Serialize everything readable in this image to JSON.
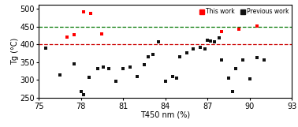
{
  "chart_data": {
    "type": "scatter",
    "x_label": "T450 nm (%)",
    "y_label": "Tg (°C)",
    "xlim": [
      75,
      93
    ],
    "ylim": [
      250,
      510
    ],
    "xticks": [
      75,
      78,
      81,
      84,
      87,
      90,
      93
    ],
    "yticks": [
      250,
      300,
      350,
      400,
      450,
      500
    ],
    "legend": "upper right",
    "marker": "square",
    "hlines": [
      {
        "y": 448,
        "color": "#007700",
        "line_style": "dashed"
      },
      {
        "y": 400,
        "color": "#cc0000",
        "line_style": "dashed"
      }
    ],
    "series": [
      {
        "name": "This work",
        "color": "#ff0000",
        "x": [
          77.0,
          77.5,
          78.2,
          78.7,
          79.5,
          88.0,
          89.2,
          90.5
        ],
        "values": [
          420,
          426,
          490,
          487,
          430,
          435,
          442,
          452
        ]
      },
      {
        "name": "Previous work",
        "color": "#111111",
        "x": [
          75.5,
          76.5,
          77.5,
          78.0,
          78.2,
          78.6,
          79.2,
          79.6,
          80.0,
          80.5,
          81.0,
          81.5,
          82.0,
          82.5,
          82.8,
          83.1,
          83.5,
          84.0,
          84.5,
          84.8,
          85.0,
          85.5,
          86.0,
          86.5,
          86.8,
          87.0,
          87.2,
          87.5,
          87.8,
          88.0,
          88.5,
          88.8,
          89.0,
          89.5,
          90.0,
          90.5,
          91.0
        ],
        "values": [
          390,
          315,
          345,
          268,
          258,
          308,
          332,
          336,
          332,
          296,
          332,
          336,
          310,
          342,
          366,
          372,
          408,
          296,
          310,
          306,
          366,
          376,
          386,
          392,
          386,
          412,
          410,
          406,
          418,
          356,
          306,
          268,
          332,
          356,
          302,
          362,
          356
        ]
      }
    ]
  }
}
